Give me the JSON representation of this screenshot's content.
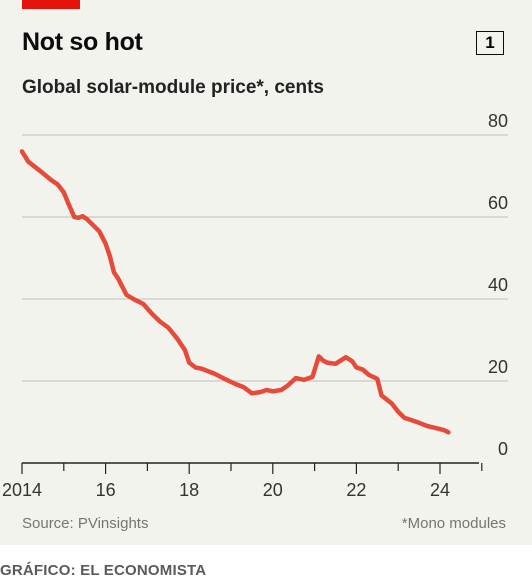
{
  "header": {
    "title": "Not so hot",
    "chart_number": "1",
    "subtitle": "Global solar-module price*, cents"
  },
  "footer": {
    "source": "Source: PVinsights",
    "footnote": "*Mono modules",
    "credit": "GRÁFICO: EL ECONOMISTA"
  },
  "colors": {
    "accent": "#e3120b",
    "line": "#e64a3a",
    "background": "#f3f3ee",
    "gridline": "#bdbdbd"
  },
  "chart_data": {
    "type": "line",
    "title": "Not so hot",
    "subtitle": "Global solar-module price*, cents",
    "ylim": [
      0,
      80
    ],
    "xlim": [
      2013.95,
      2025.1
    ],
    "y_ticks": [
      0,
      20,
      40,
      60,
      80
    ],
    "x_ticks": [
      2014,
      2016,
      2018,
      2020,
      2022,
      2024
    ],
    "x_tick_labels": [
      "2014",
      "16",
      "18",
      "20",
      "22",
      "24"
    ],
    "grid": "horizontal",
    "legend": "none",
    "series": [
      {
        "x": [
          2014.0,
          2014.15,
          2014.4,
          2014.7,
          2014.85,
          2015.0,
          2015.1,
          2015.25,
          2015.35,
          2015.45,
          2015.55,
          2015.7,
          2015.85,
          2016.0,
          2016.1,
          2016.2,
          2016.3,
          2016.5,
          2016.7,
          2016.9,
          2017.1,
          2017.3,
          2017.5,
          2017.7,
          2017.9,
          2018.0,
          2018.15,
          2018.3,
          2018.6,
          2018.85,
          2019.1,
          2019.3,
          2019.5,
          2019.7,
          2019.85,
          2020.0,
          2020.2,
          2020.35,
          2020.55,
          2020.75,
          2020.95,
          2021.1,
          2021.2,
          2021.3,
          2021.5,
          2021.75,
          2021.9,
          2022.0,
          2022.15,
          2022.3,
          2022.5,
          2022.6,
          2022.85,
          2023.0,
          2023.15,
          2023.3,
          2023.5,
          2023.7,
          2023.9,
          2024.1,
          2024.2
        ],
        "y": [
          76,
          73.5,
          71.5,
          69,
          68,
          66,
          63.5,
          60,
          59.8,
          60.2,
          59.5,
          58,
          56.5,
          53.5,
          50.5,
          46.5,
          45,
          41,
          39.8,
          38.8,
          36.5,
          34.5,
          33,
          30.5,
          27.5,
          24.5,
          23.3,
          23,
          21.8,
          20.5,
          19.3,
          18.5,
          17,
          17.3,
          17.8,
          17.5,
          17.8,
          18.8,
          20.7,
          20.3,
          21,
          26,
          25,
          24.5,
          24.2,
          25.8,
          24.8,
          23.3,
          22.8,
          21.5,
          20.5,
          16.5,
          14.5,
          12.5,
          11,
          10.5,
          9.8,
          9,
          8.5,
          8,
          7.5
        ]
      }
    ]
  }
}
